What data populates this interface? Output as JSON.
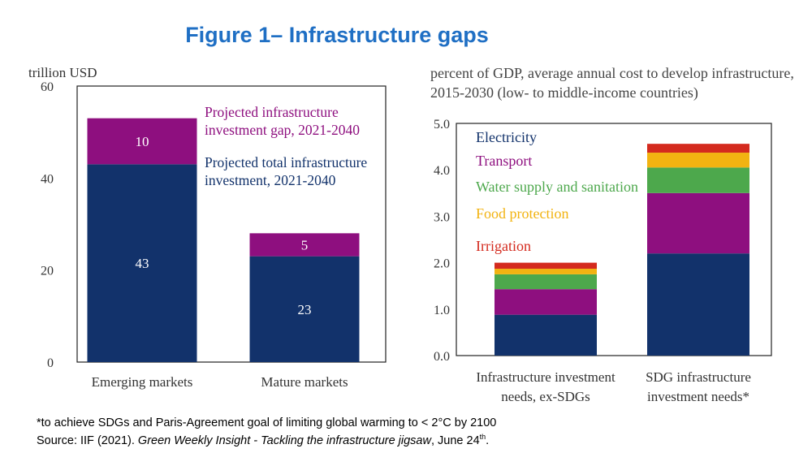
{
  "figure_title": "Figure 1– Infrastructure gaps",
  "footnotes": {
    "note": "*to achieve SDGs and Paris-Agreement goal of limiting global warming to < 2°C by 2100",
    "source_prefix": "Source: IIF (2021). ",
    "source_italic": "Green Weekly Insight - Tackling the infrastructure jigsaw",
    "source_suffix": ", June 24",
    "source_sup": "th",
    "source_end": "."
  },
  "chart_data": [
    {
      "type": "bar",
      "stacked": true,
      "ylabel": "trillion USD",
      "ylim": [
        0,
        60
      ],
      "yticks": [
        "0",
        "20",
        "40",
        "60"
      ],
      "categories": [
        "Emerging markets",
        "Mature markets"
      ],
      "series": [
        {
          "name": "Projected total infrastructure investment, 2021-2040",
          "values": [
            43,
            23
          ],
          "color": "#12326B",
          "labels": [
            "43",
            "23"
          ]
        },
        {
          "name": "Projected infrastructure investment gap, 2021-2040",
          "values": [
            10,
            5
          ],
          "color": "#8E0F7F",
          "labels": [
            "10",
            "5"
          ]
        }
      ],
      "legend_placement": "inside-top-right",
      "grid": false
    },
    {
      "type": "bar",
      "stacked": true,
      "ylabel": "percent of GDP, average annual cost to develop infrastructure, 2015-2030 (low- to middle-income countries)",
      "ylim": [
        0,
        5
      ],
      "yticks": [
        "0.0",
        "1.0",
        "2.0",
        "3.0",
        "4.0",
        "5.0"
      ],
      "categories": [
        "Infrastructure investment needs, ex-SDGs",
        "SDG infrastructure investment needs*"
      ],
      "series": [
        {
          "name": "Electricity",
          "values": [
            0.88,
            2.2
          ],
          "color": "#12326B"
        },
        {
          "name": "Transport",
          "values": [
            0.55,
            1.3
          ],
          "color": "#8E0F7F"
        },
        {
          "name": "Water supply and sanitation",
          "values": [
            0.32,
            0.55
          ],
          "color": "#4DA84C"
        },
        {
          "name": "Food protection",
          "values": [
            0.12,
            0.32
          ],
          "color": "#F2B311"
        },
        {
          "name": "Irrigation",
          "values": [
            0.13,
            0.19
          ],
          "color": "#D42A1E"
        }
      ],
      "legend_placement": "inside-top-left",
      "grid": false
    }
  ]
}
